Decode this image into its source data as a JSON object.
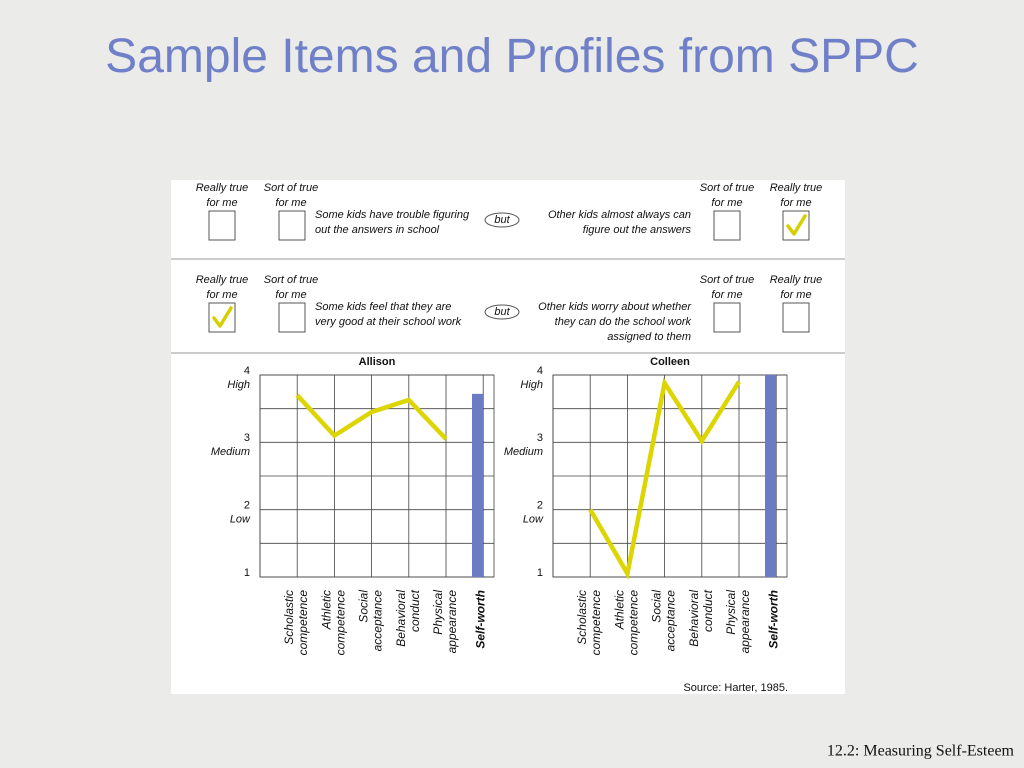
{
  "title": "Sample Items and Profiles from SPPC",
  "footer": "12.2: Measuring Self-Esteem",
  "source": "Source: Harter, 1985.",
  "items": [
    {
      "left_headers": [
        "Really true\nfor me",
        "Sort of true\nfor me"
      ],
      "left_statement": "Some kids have trouble figuring\nout the answers in school",
      "connector": "but",
      "right_statement": "Other kids almost always can\nfigure out the answers",
      "right_headers": [
        "Sort of true\nfor me",
        "Really true\nfor me"
      ],
      "checked_box": 3
    },
    {
      "left_headers": [
        "Really true\nfor me",
        "Sort of true\nfor me"
      ],
      "left_statement": "Some kids feel that they are\nvery good at their school work",
      "connector": "but",
      "right_statement": "Other kids worry about whether\nthey can do the school work\nassigned to them",
      "right_headers": [
        "Sort of true\nfor me",
        "Really true\nfor me"
      ],
      "checked_box": 0
    }
  ],
  "chart_data": [
    {
      "type": "line",
      "title": "Allison",
      "categories": [
        "Scholastic\ncompetence",
        "Athletic\ncompetence",
        "Social\nacceptance",
        "Behavioral\nconduct",
        "Physical\nappearance",
        "Self-worth"
      ],
      "series": [
        {
          "type": "line",
          "color": "#dcd500",
          "values": [
            3.7,
            3.1,
            3.45,
            3.63,
            3.05,
            null
          ]
        },
        {
          "type": "bar",
          "color": "#6b7bc4",
          "values": [
            null,
            null,
            null,
            null,
            null,
            3.72
          ]
        }
      ],
      "ylim": [
        1,
        4
      ],
      "yticks": [
        1,
        2,
        3,
        4
      ],
      "minor_yticks": [
        1.5,
        2.5,
        3.5
      ],
      "y_level_labels": [
        {
          "value": 2,
          "label": "Low"
        },
        {
          "value": 3,
          "label": "Medium"
        },
        {
          "value": 4,
          "label": "High"
        }
      ],
      "grid": true
    },
    {
      "type": "line",
      "title": "Colleen",
      "categories": [
        "Scholastic\ncompetence",
        "Athletic\ncompetence",
        "Social\nacceptance",
        "Behavioral\nconduct",
        "Physical\nappearance",
        "Self-worth"
      ],
      "series": [
        {
          "type": "line",
          "color": "#dcd500",
          "values": [
            2.0,
            1.05,
            3.88,
            3.02,
            3.9,
            null
          ]
        },
        {
          "type": "bar",
          "color": "#6b7bc4",
          "values": [
            null,
            null,
            null,
            null,
            null,
            4.0
          ]
        }
      ],
      "ylim": [
        1,
        4
      ],
      "yticks": [
        1,
        2,
        3,
        4
      ],
      "minor_yticks": [
        1.5,
        2.5,
        3.5
      ],
      "y_level_labels": [
        {
          "value": 2,
          "label": "Low"
        },
        {
          "value": 3,
          "label": "Medium"
        },
        {
          "value": 4,
          "label": "High"
        }
      ],
      "grid": true
    }
  ]
}
